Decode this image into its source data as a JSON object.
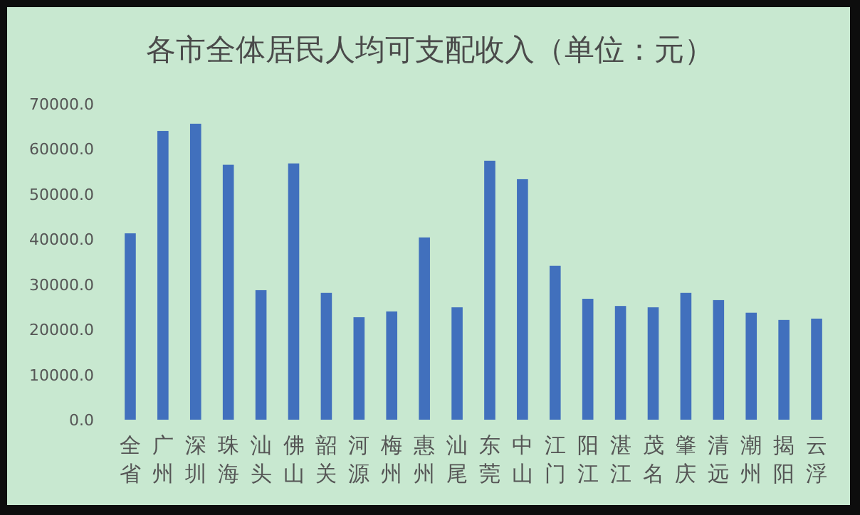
{
  "chart_data": {
    "type": "bar",
    "title": "各市全体居民人均可支配收入（单位：元）",
    "categories": [
      "全省",
      "广州",
      "深圳",
      "珠海",
      "汕头",
      "佛山",
      "韶关",
      "河源",
      "梅州",
      "惠州",
      "汕尾",
      "东莞",
      "中山",
      "江门",
      "阳江",
      "湛江",
      "茂名",
      "肇庆",
      "清远",
      "潮州",
      "揭阳",
      "云浮"
    ],
    "values": [
      41300,
      64000,
      65600,
      56500,
      28700,
      56800,
      28100,
      22700,
      24000,
      40400,
      24900,
      57400,
      53300,
      34100,
      26800,
      25200,
      24900,
      28100,
      26500,
      23700,
      22100,
      22400
    ],
    "color": "#4170bd",
    "ylim": [
      0,
      70000
    ],
    "yticks": [
      {
        "value": 0,
        "label": "0.0"
      },
      {
        "value": 10000,
        "label": "10000.0"
      },
      {
        "value": 20000,
        "label": "20000.0"
      },
      {
        "value": 30000,
        "label": "30000.0"
      },
      {
        "value": 40000,
        "label": "40000.0"
      },
      {
        "value": 50000,
        "label": "50000.0"
      },
      {
        "value": 60000,
        "label": "60000.0"
      },
      {
        "value": 70000,
        "label": "70000.0"
      }
    ],
    "grid": false
  }
}
